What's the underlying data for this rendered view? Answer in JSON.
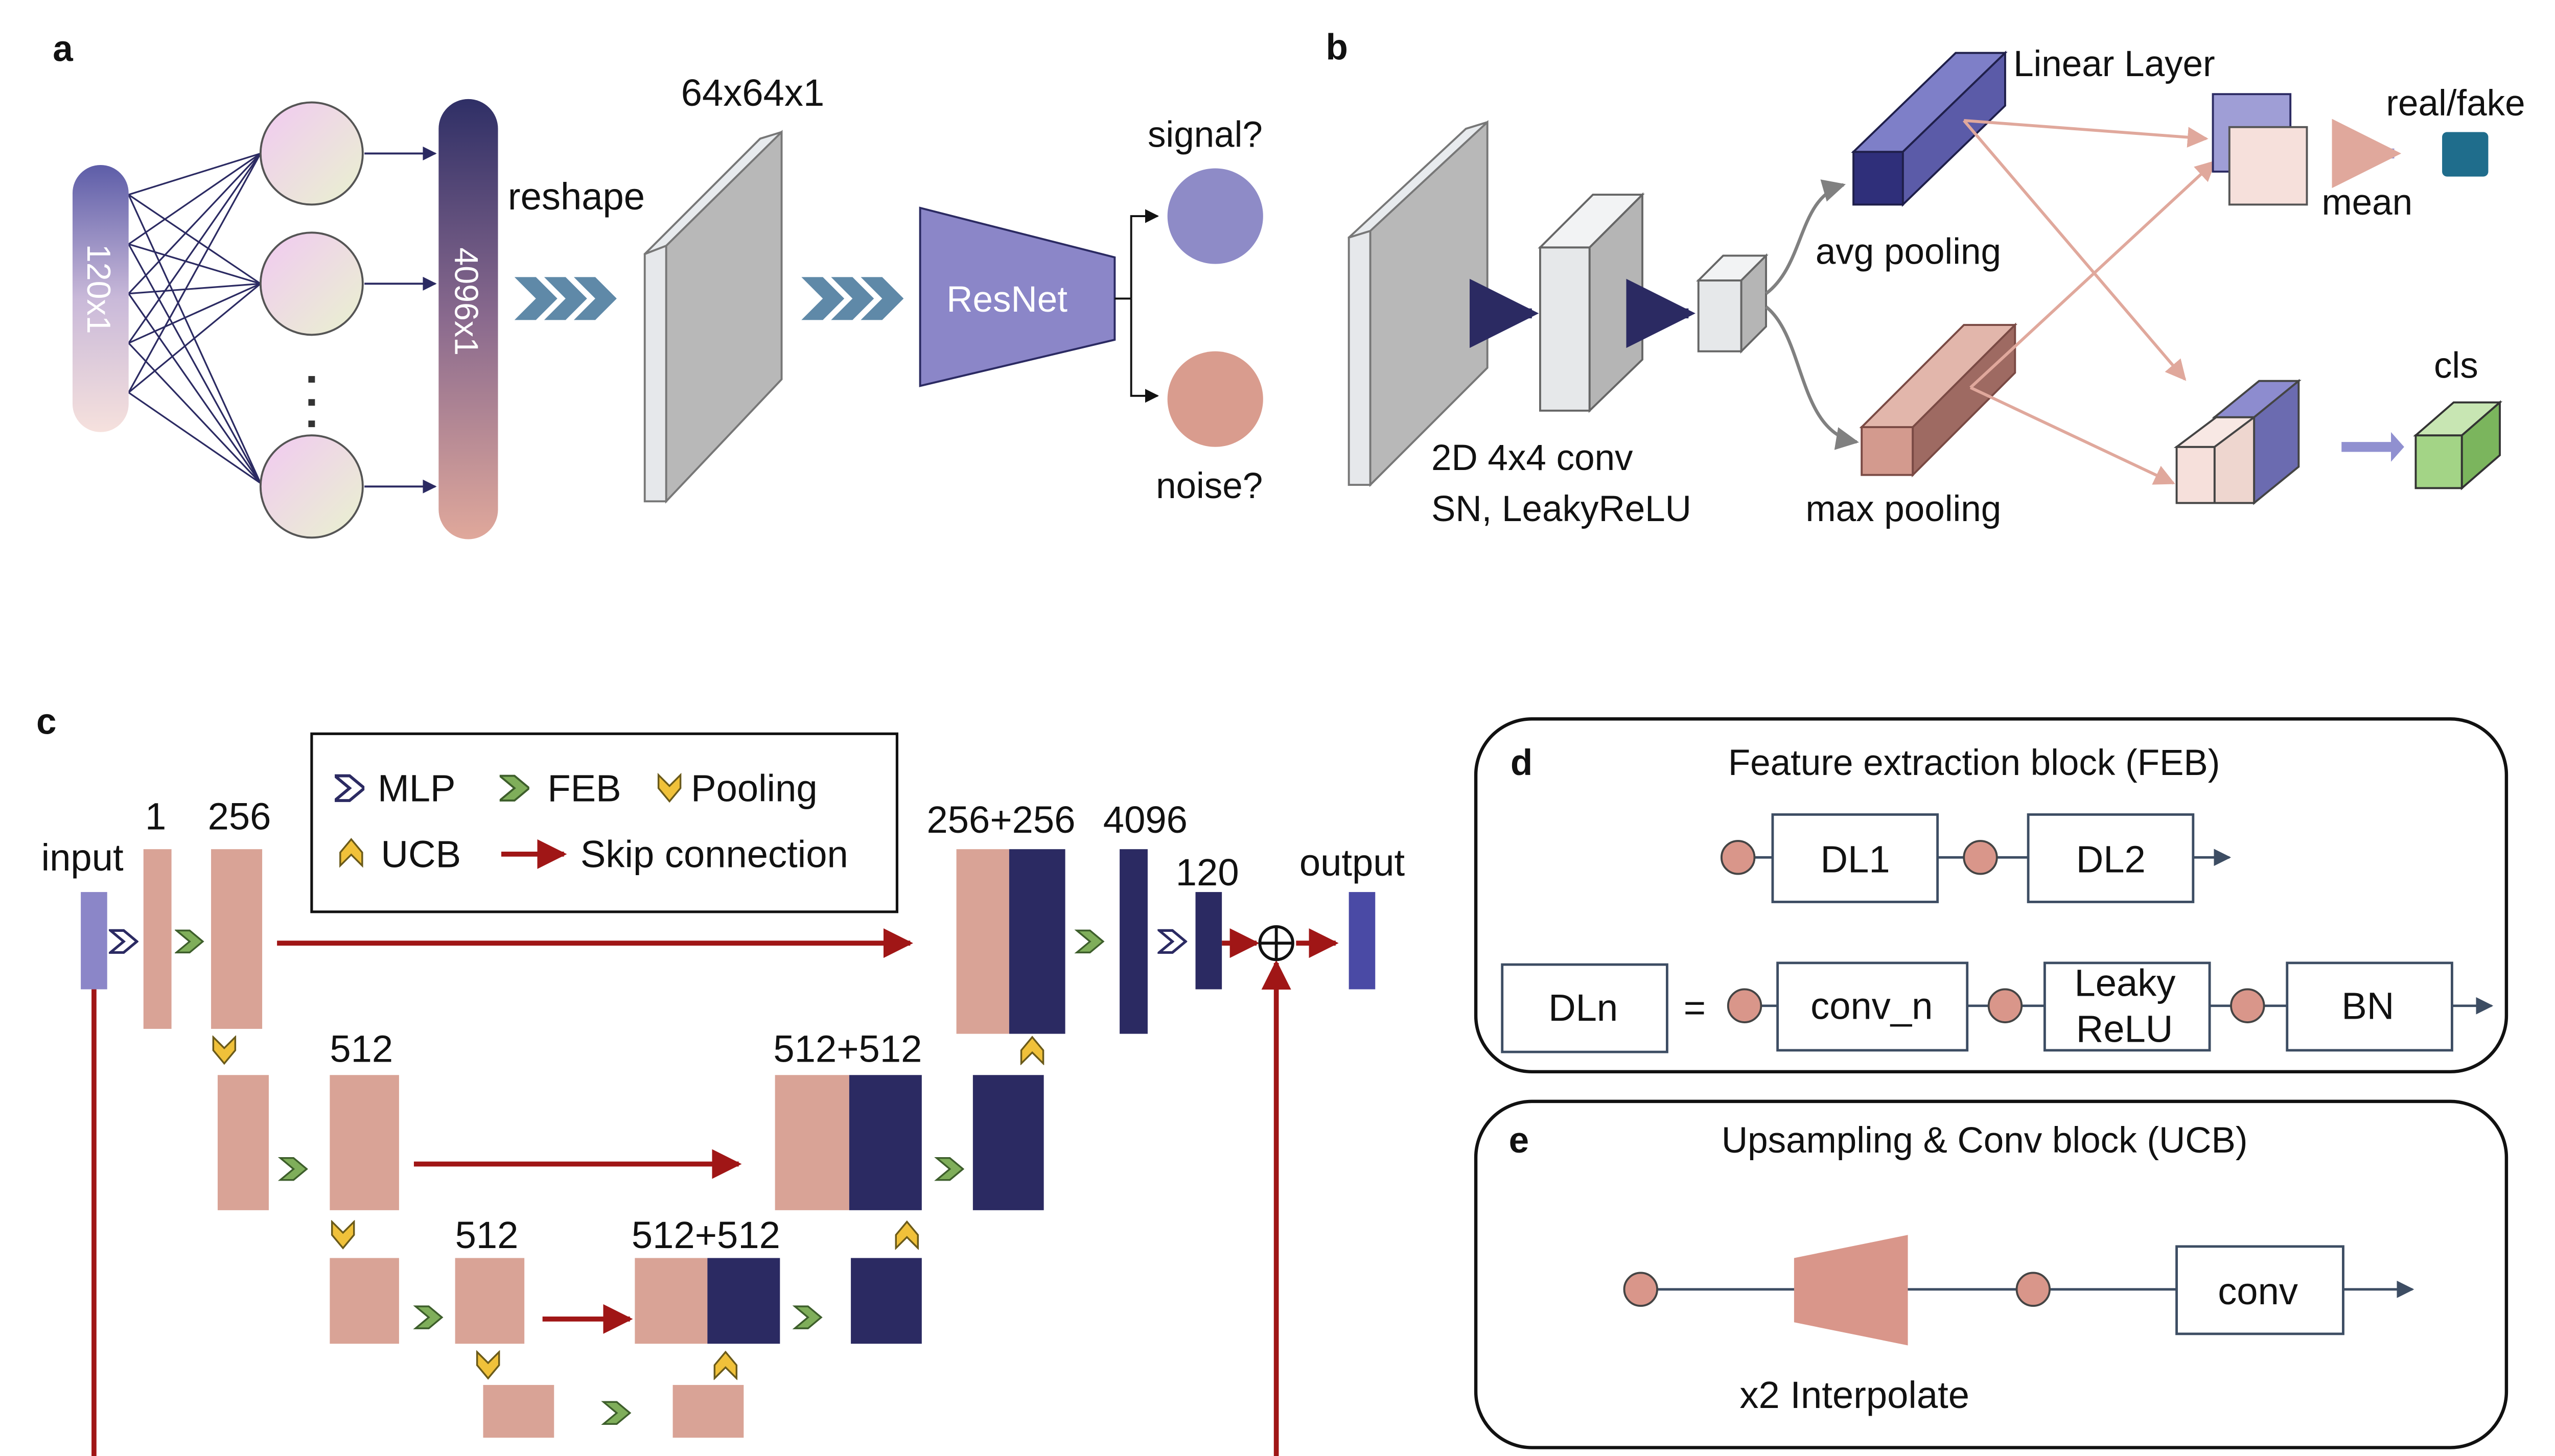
{
  "panels": {
    "a": {
      "letter": "a",
      "input_label": "120x1",
      "fc_output_label": "4096x1",
      "dots": "·\n·\n·",
      "reshape_label": "reshape",
      "plane_label": "64x64x1",
      "resnet_label": "ResNet",
      "signal_label": "signal?",
      "noise_label": "noise?"
    },
    "b": {
      "letter": "b",
      "conv_label_line1": "2D 4x4 conv",
      "conv_label_line2": "SN, LeakyReLU",
      "avg_pool_label": "avg pooling",
      "max_pool_label": "max pooling",
      "linear_layer_label": "Linear Layer",
      "mean_label": "mean",
      "real_fake_label": "real/fake",
      "cls_label": "cls"
    },
    "c": {
      "letter": "c",
      "legend": {
        "mlp": "MLP",
        "feb": "FEB",
        "pooling": "Pooling",
        "ucb": "UCB",
        "skip": "Skip connection"
      },
      "input_label": "input",
      "output_label": "output",
      "dim_1": "1",
      "dim_256": "256",
      "dim_512_a": "512",
      "dim_512_b": "512",
      "dim_256_256": "256+256",
      "dim_4096": "4096",
      "dim_120": "120",
      "dim_512_512_a": "512+512",
      "dim_512_512_b": "512+512"
    },
    "d": {
      "letter": "d",
      "title": "Feature extraction block (FEB)",
      "dl1": "DL1",
      "dl2": "DL2",
      "dln": "DLn",
      "equals": "=",
      "conv_n": "conv_n",
      "leaky_line1": "Leaky",
      "leaky_line2": "ReLU",
      "bn": "BN"
    },
    "e": {
      "letter": "e",
      "title": "Upsampling & Conv block (UCB)",
      "conv": "conv",
      "interpolate": "x2 Interpolate"
    }
  },
  "colors": {
    "salmon": "#d9a396",
    "navy": "#2b2a62",
    "violet": "#8b86c8",
    "steel": "#5f89a8",
    "dark_red": "#a01616",
    "teal": "#1f6d8c",
    "green": "#9bcf7d",
    "gold": "#f0c13a",
    "feb_green": "#7fae5a",
    "gray_plane": "#b8b8b8"
  }
}
